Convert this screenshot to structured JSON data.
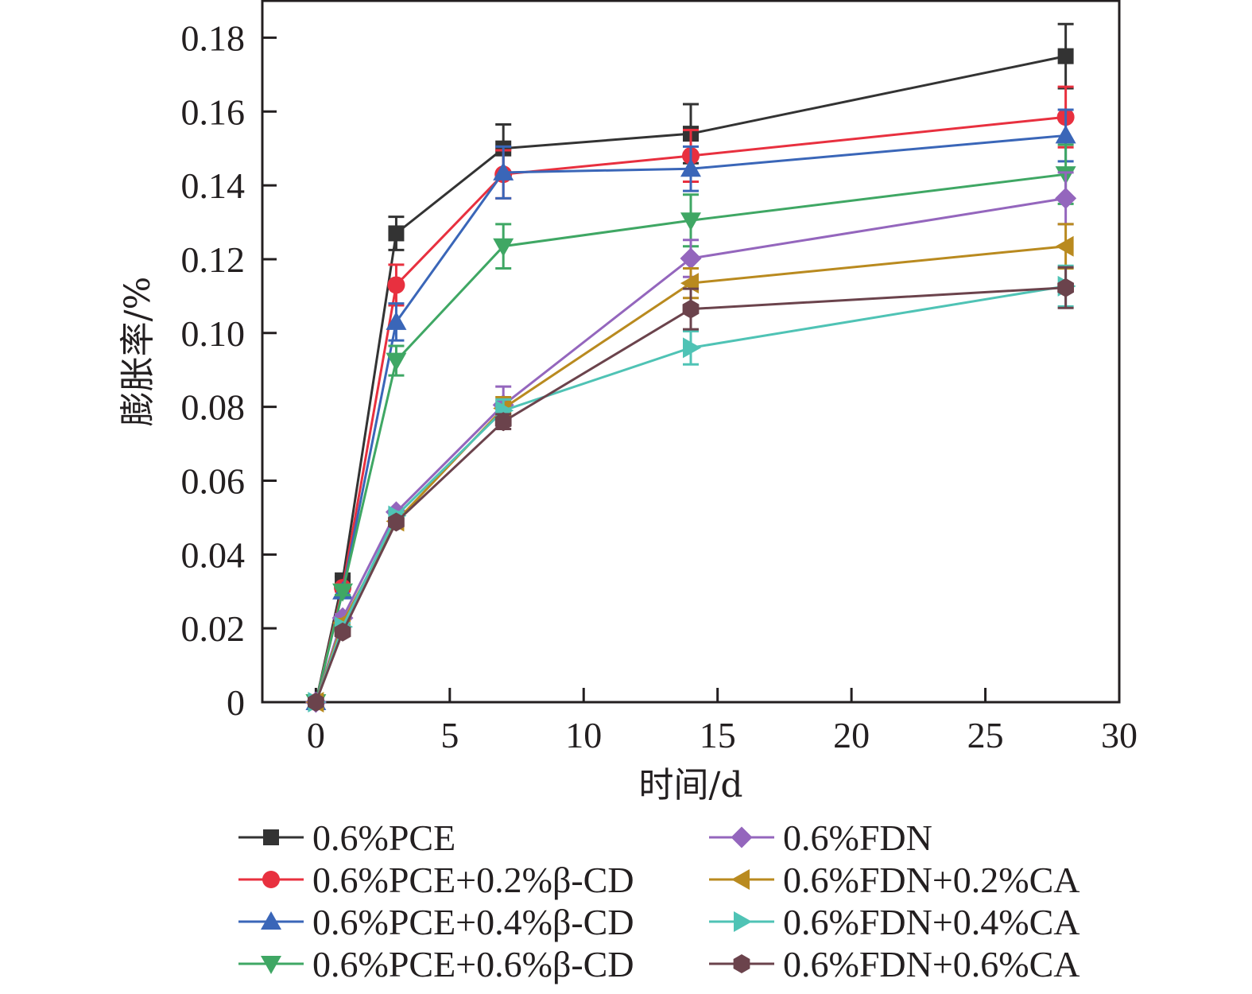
{
  "chart_data": {
    "type": "line",
    "title": "",
    "xlabel": "时间/d",
    "ylabel": "膨胀率/%",
    "xlim": [
      -2,
      30
    ],
    "ylim": [
      0,
      0.19
    ],
    "xticks": [
      0,
      5,
      10,
      15,
      20,
      25,
      30
    ],
    "xtick_labels": [
      "0",
      "5",
      "10",
      "15",
      "20",
      "25",
      "30"
    ],
    "yticks": [
      0,
      0.02,
      0.04,
      0.06,
      0.08,
      0.1,
      0.12,
      0.14,
      0.16,
      0.18
    ],
    "ytick_labels": [
      "0",
      "0.02",
      "0.04",
      "0.06",
      "0.08",
      "0.10",
      "0.12",
      "0.14",
      "0.16",
      "0.18"
    ],
    "grid": false,
    "legend_position": "bottom",
    "x": [
      0,
      1,
      3,
      7,
      14,
      28
    ],
    "series": [
      {
        "name": "0.6%PCE",
        "color": "#333333",
        "marker": "square",
        "values": [
          0,
          0.033,
          0.127,
          0.15,
          0.154,
          0.175
        ],
        "errors": [
          0,
          0.001,
          0.0045,
          0.0065,
          0.008,
          0.0087
        ]
      },
      {
        "name": "0.6%PCE+0.2%β-CD",
        "color": "#e8303f",
        "marker": "circle",
        "values": [
          0,
          0.031,
          0.113,
          0.143,
          0.148,
          0.1585
        ],
        "errors": [
          0,
          0.001,
          0.0055,
          0.0065,
          0.007,
          0.0082
        ]
      },
      {
        "name": "0.6%PCE+0.4%β-CD",
        "color": "#3a66b8",
        "marker": "triangle-up",
        "values": [
          0,
          0.03,
          0.103,
          0.1435,
          0.1445,
          0.1535
        ],
        "errors": [
          0,
          0.001,
          0.005,
          0.007,
          0.006,
          0.007
        ]
      },
      {
        "name": "0.6%PCE+0.6%β-CD",
        "color": "#3fa764",
        "marker": "triangle-down",
        "values": [
          0,
          0.03,
          0.0925,
          0.1235,
          0.1305,
          0.143
        ],
        "errors": [
          0,
          0.001,
          0.004,
          0.006,
          0.007,
          0.008
        ]
      },
      {
        "name": "0.6%FDN",
        "color": "#9466bd",
        "marker": "diamond",
        "values": [
          0,
          0.0228,
          0.0515,
          0.0805,
          0.1202,
          0.1365
        ],
        "errors": [
          0,
          0.001,
          0.001,
          0.005,
          0.005,
          0.007
        ]
      },
      {
        "name": "0.6%FDN+0.2%CA",
        "color": "#b98a1f",
        "marker": "triangle-left",
        "values": [
          0,
          0.0215,
          0.049,
          0.0796,
          0.1135,
          0.1235
        ],
        "errors": [
          0,
          0.001,
          0.001,
          0.003,
          0.004,
          0.006
        ]
      },
      {
        "name": "0.6%FDN+0.4%CA",
        "color": "#4fc3b5",
        "marker": "triangle-right",
        "values": [
          0,
          0.0204,
          0.0505,
          0.079,
          0.096,
          0.1127
        ],
        "errors": [
          0,
          0.001,
          0.001,
          0.003,
          0.0045,
          0.0055
        ]
      },
      {
        "name": "0.6%FDN+0.6%CA",
        "color": "#6b434c",
        "marker": "hexagon",
        "values": [
          0,
          0.019,
          0.0488,
          0.076,
          0.1065,
          0.1123
        ],
        "errors": [
          0,
          0.001,
          0.001,
          0.002,
          0.0055,
          0.0055
        ]
      }
    ]
  }
}
